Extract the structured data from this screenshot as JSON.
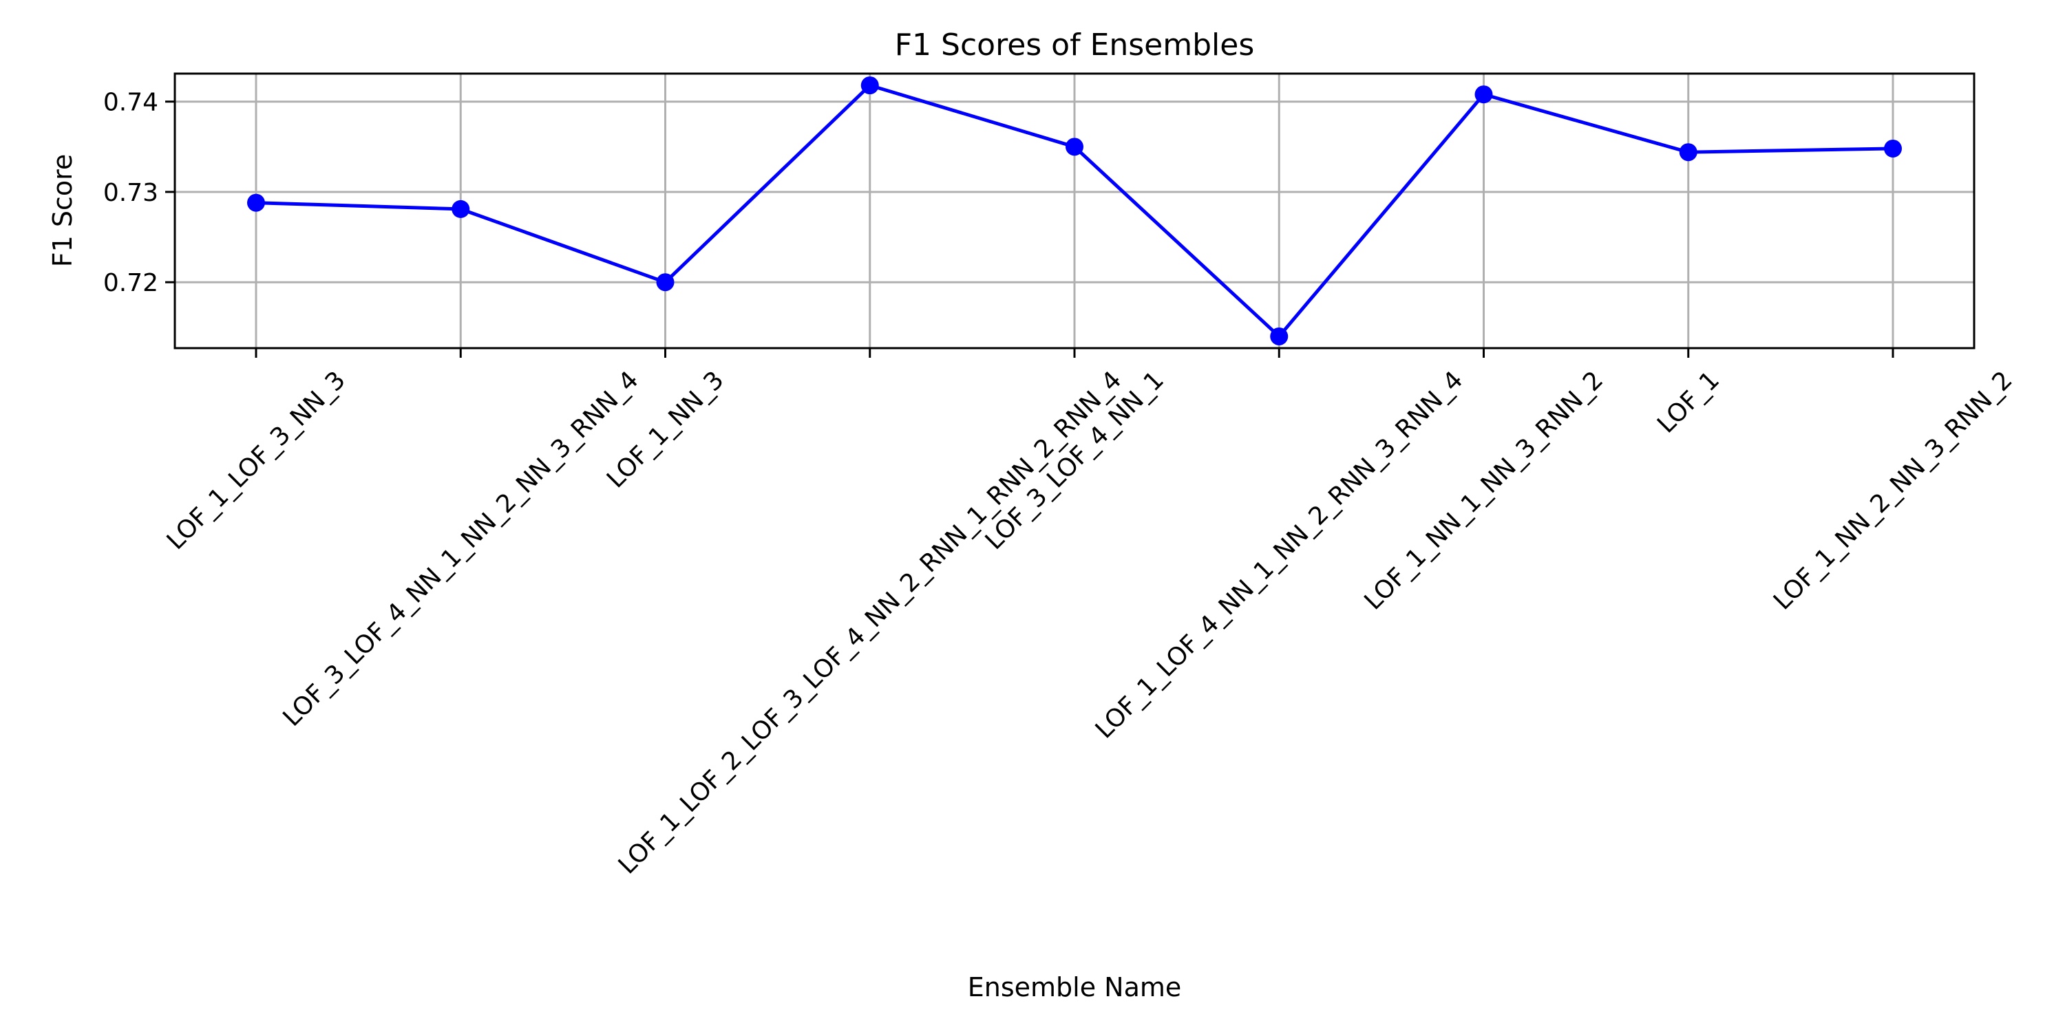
{
  "chart_data": {
    "type": "line",
    "title": "F1 Scores of Ensembles",
    "xlabel": "Ensemble Name",
    "ylabel": "F1 Score",
    "categories": [
      "LOF_1_LOF_3_NN_3",
      "LOF_3_LOF_4_NN_1_NN_2_NN_3_RNN_4",
      "LOF_1_NN_3",
      "LOF_1_LOF_2_LOF_3_LOF_4_NN_2_RNN_1_RNN_2_RNN_4",
      "LOF_3_LOF_4_NN_1",
      "LOF_1_LOF_4_NN_1_NN_2_RNN_3_RNN_4",
      "LOF_1_NN_1_NN_3_RNN_2",
      "LOF_1",
      "LOF_1_NN_2_NN_3_RNN_2"
    ],
    "series": [
      {
        "values": [
          0.7288,
          0.7281,
          0.72,
          0.7418,
          0.735,
          0.714,
          0.7408,
          0.7344,
          0.7348
        ],
        "color": "#0000ff",
        "marker": "circle"
      }
    ],
    "ylim": [
      0.7127,
      0.7431
    ],
    "yticks": [
      0.72,
      0.73,
      0.74
    ],
    "ytick_labels": [
      "0.72",
      "0.73",
      "0.74"
    ],
    "xtick_rotation_deg": 45,
    "grid": true,
    "legend": "none"
  }
}
